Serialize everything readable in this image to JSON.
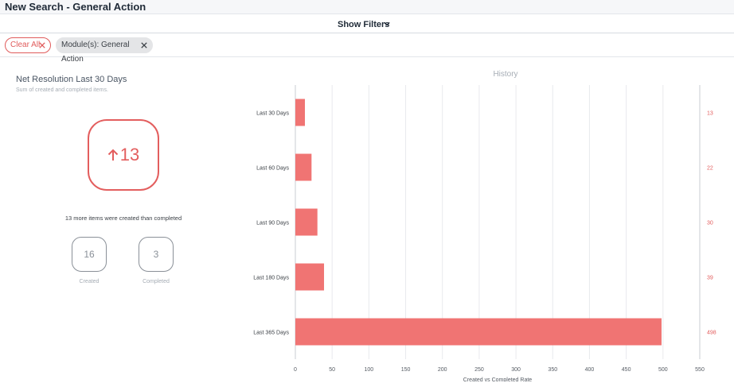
{
  "page": {
    "title": "New Search - General Action"
  },
  "filters": {
    "toggle_label": "Show Filters"
  },
  "chips": {
    "clear_all": "Clear All",
    "module": "Module(s): General Action"
  },
  "net_resolution": {
    "title": "Net Resolution Last 30 Days",
    "subtitle": "Sum of created and completed items.",
    "net_value": "13",
    "description": "13 more items were created than completed",
    "created_value": "16",
    "created_label": "Created",
    "completed_value": "3",
    "completed_label": "Completed",
    "accent_color": "#e35e5e"
  },
  "chart_data": {
    "type": "bar",
    "orientation": "horizontal",
    "title": "History",
    "xlabel": "Created vs Completed Rate",
    "ylabel": "",
    "xlim": [
      0,
      550
    ],
    "xticks": [
      0,
      50,
      100,
      150,
      200,
      250,
      300,
      350,
      400,
      450,
      500,
      550
    ],
    "grid": true,
    "categories": [
      "Last 30 Days",
      "Last 60 Days",
      "Last 90 Days",
      "Last 180 Days",
      "Last 365 Days"
    ],
    "values": [
      13,
      22,
      30,
      39,
      498
    ],
    "bar_color": "#f07473"
  }
}
